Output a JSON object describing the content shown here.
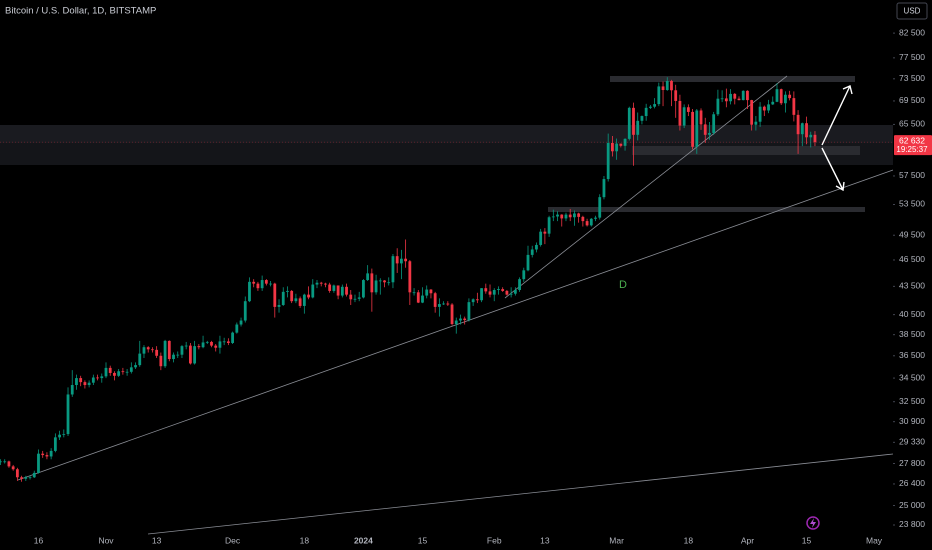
{
  "chart_data": {
    "type": "candlestick",
    "title": "Bitcoin / U.S. Dollar, 1D, BITSTAMP",
    "currency": "USD",
    "annotation": "D",
    "price_label": {
      "value": 62632,
      "label": "62 632"
    },
    "countdown": "19:25:37",
    "log_scale": true,
    "grid": false,
    "up_color": "#089981",
    "down_color": "#f23645",
    "ylim": [
      23030,
      89700
    ],
    "yticks": [
      {
        "value": 82500,
        "label": "82 500"
      },
      {
        "value": 77500,
        "label": "77 500"
      },
      {
        "value": 73500,
        "label": "73 500"
      },
      {
        "value": 69500,
        "label": "69 500"
      },
      {
        "value": 65500,
        "label": "65 500"
      },
      {
        "value": 57500,
        "label": "57 500"
      },
      {
        "value": 53500,
        "label": "53 500"
      },
      {
        "value": 49500,
        "label": "49 500"
      },
      {
        "value": 46500,
        "label": "46 500"
      },
      {
        "value": 43500,
        "label": "43 500"
      },
      {
        "value": 40500,
        "label": "40 500"
      },
      {
        "value": 38500,
        "label": "38 500"
      },
      {
        "value": 36500,
        "label": "36 500"
      },
      {
        "value": 34500,
        "label": "34 500"
      },
      {
        "value": 32500,
        "label": "32 500"
      },
      {
        "value": 30900,
        "label": "30 900"
      },
      {
        "value": 29330,
        "label": "29 330"
      },
      {
        "value": 27800,
        "label": "27 800"
      },
      {
        "value": 26400,
        "label": "26 400"
      },
      {
        "value": 25000,
        "label": "25 000"
      },
      {
        "value": 23800,
        "label": "23 800"
      }
    ],
    "categories": [
      null,
      null,
      null,
      null,
      null,
      null,
      null,
      null,
      null,
      "16",
      null,
      null,
      null,
      null,
      null,
      null,
      null,
      null,
      null,
      null,
      null,
      null,
      null,
      null,
      null,
      "Nov",
      null,
      null,
      null,
      null,
      null,
      null,
      null,
      null,
      null,
      null,
      null,
      "13",
      null,
      null,
      null,
      null,
      null,
      null,
      null,
      null,
      null,
      null,
      null,
      null,
      null,
      null,
      null,
      null,
      null,
      "Dec",
      null,
      null,
      null,
      null,
      null,
      null,
      null,
      null,
      null,
      null,
      null,
      null,
      null,
      null,
      null,
      null,
      "18",
      null,
      null,
      null,
      null,
      null,
      null,
      null,
      null,
      null,
      null,
      null,
      null,
      null,
      "2024",
      null,
      null,
      null,
      null,
      null,
      null,
      null,
      null,
      null,
      null,
      null,
      null,
      null,
      "15",
      null,
      null,
      null,
      null,
      null,
      null,
      null,
      null,
      null,
      null,
      null,
      null,
      null,
      null,
      null,
      null,
      "Feb",
      null,
      null,
      null,
      null,
      null,
      null,
      null,
      null,
      null,
      null,
      null,
      "13",
      null,
      null,
      null,
      null,
      null,
      null,
      null,
      null,
      null,
      null,
      null,
      null,
      null,
      null,
      null,
      null,
      "Mar",
      null,
      null,
      null,
      null,
      null,
      null,
      null,
      null,
      null,
      null,
      null,
      null,
      null,
      null,
      null,
      null,
      "18",
      null,
      null,
      null,
      null,
      null,
      null,
      null,
      null,
      null,
      null,
      null,
      null,
      null,
      "Apr",
      null,
      null,
      null,
      null,
      null,
      null,
      null,
      null,
      null,
      null,
      null,
      null,
      null,
      "15",
      null,
      null,
      null,
      null,
      null,
      null,
      null,
      null,
      null,
      null,
      null,
      null,
      null,
      null,
      null,
      "May"
    ],
    "open": [
      27900,
      27950,
      27950,
      27600,
      27400,
      26850,
      26750,
      26850,
      26850,
      27150,
      28500,
      28400,
      28300,
      28700,
      29700,
      29900,
      29950,
      33100,
      33900,
      34500,
      34150,
      33900,
      34100,
      34550,
      34500,
      34650,
      35400,
      34950,
      34700,
      35100,
      35050,
      35050,
      35450,
      35650,
      36700,
      37300,
      37100,
      37050,
      36500,
      35550,
      37900,
      36200,
      36600,
      36600,
      37400,
      37450,
      35800,
      37400,
      37300,
      37750,
      37800,
      37450,
      37250,
      37850,
      37850,
      37700,
      38700,
      39500,
      39900,
      41900,
      44000,
      43800,
      43300,
      44200,
      43800,
      43800,
      41300,
      41500,
      42900,
      43000,
      41900,
      42200,
      41400,
      42600,
      42300,
      43700,
      43900,
      43800,
      43700,
      43000,
      43600,
      42500,
      43450,
      42600,
      42100,
      42150,
      42300,
      44200,
      44950,
      42850,
      44150,
      44150,
      43950,
      43950,
      46950,
      46100,
      46650,
      46350,
      42850,
      42850,
      41750,
      42500,
      43150,
      42750,
      41300,
      41600,
      41650,
      41550,
      39550,
      39900,
      40100,
      39950,
      41800,
      42100,
      42000,
      43300,
      42950,
      42600,
      43100,
      43200,
      43000,
      42600,
      42700,
      43100,
      44300,
      45300,
      47100,
      47750,
      48300,
      49950,
      49700,
      51800,
      51900,
      52150,
      51650,
      52150,
      51800,
      52300,
      51850,
      51300,
      50750,
      51600,
      51750,
      54500,
      57050,
      62500,
      61200,
      62400,
      62050,
      63150,
      68300,
      63800,
      66100,
      66900,
      68300,
      68500,
      68950,
      72100,
      71450,
      73100,
      71400,
      69500,
      65300,
      68400,
      67600,
      61900,
      67850,
      65500,
      63800,
      64100,
      67200,
      69900,
      69950,
      69450,
      70750,
      69900,
      69650,
      71300,
      69650,
      65450,
      65950,
      68500,
      67850,
      68900,
      69350,
      71600,
      69100,
      70600,
      70000,
      67100,
      63900,
      65700,
      63400,
      63800,
      null,
      null,
      null,
      null,
      null,
      null,
      null,
      null,
      null,
      null,
      null,
      null,
      null,
      null
    ],
    "high": [
      28100,
      28100,
      28000,
      27700,
      27500,
      26950,
      26950,
      26950,
      27300,
      28800,
      28700,
      28600,
      28900,
      30000,
      30200,
      30300,
      33700,
      35200,
      34800,
      34700,
      34300,
      34300,
      34800,
      34800,
      34900,
      35900,
      35600,
      35100,
      35300,
      35400,
      35300,
      35900,
      35900,
      37900,
      37500,
      37400,
      37300,
      37400,
      36800,
      38000,
      37950,
      36800,
      36900,
      37500,
      37800,
      37700,
      37900,
      37600,
      38400,
      37900,
      37900,
      37600,
      38400,
      38200,
      38150,
      38800,
      39700,
      40200,
      42400,
      44500,
      44300,
      44000,
      44700,
      44300,
      44100,
      43900,
      42100,
      43400,
      43500,
      43100,
      42700,
      42400,
      42700,
      43500,
      44300,
      44200,
      44000,
      43900,
      43900,
      43700,
      43600,
      43700,
      43800,
      43100,
      42600,
      42900,
      44300,
      45900,
      45500,
      44800,
      44400,
      44200,
      44500,
      47200,
      47900,
      47700,
      48970,
      46500,
      43300,
      43100,
      43400,
      43600,
      43200,
      42900,
      42200,
      41900,
      41900,
      41700,
      40200,
      40500,
      40300,
      42200,
      42200,
      42800,
      43300,
      43800,
      43700,
      43300,
      43500,
      43400,
      43100,
      43400,
      43400,
      44500,
      45600,
      48200,
      48200,
      48600,
      50300,
      50400,
      52000,
      52800,
      52600,
      52200,
      52400,
      52900,
      52700,
      52400,
      52000,
      51600,
      51700,
      52000,
      54900,
      57500,
      64000,
      63600,
      63200,
      62400,
      63250,
      68500,
      69200,
      67500,
      67000,
      69000,
      68800,
      70000,
      72800,
      73000,
      73800,
      73300,
      72400,
      70600,
      68900,
      68900,
      68100,
      68100,
      68200,
      66600,
      65900,
      67600,
      71500,
      71400,
      71700,
      71600,
      70900,
      70300,
      71400,
      71400,
      69700,
      66900,
      69300,
      68700,
      69700,
      70300,
      72700,
      71700,
      71200,
      71300,
      71200,
      67900,
      65800,
      66800,
      64300,
      64400,
      null,
      null,
      null,
      null,
      null,
      null,
      null,
      null,
      null,
      null,
      null,
      null,
      null,
      null
    ],
    "low": [
      27700,
      27800,
      27500,
      27300,
      26600,
      26550,
      26600,
      26700,
      26800,
      27100,
      28200,
      28100,
      28100,
      28600,
      29500,
      29700,
      29800,
      32900,
      33500,
      33800,
      33600,
      33700,
      33900,
      34300,
      34100,
      34500,
      34700,
      34300,
      34600,
      34800,
      34700,
      34900,
      35300,
      35500,
      36300,
      36800,
      36800,
      36300,
      35200,
      35400,
      36000,
      35900,
      36300,
      36300,
      37100,
      35700,
      35700,
      37100,
      37200,
      37600,
      37300,
      36900,
      36700,
      37500,
      37500,
      37600,
      38600,
      39300,
      39700,
      41800,
      43400,
      43000,
      43000,
      43600,
      43500,
      40200,
      40700,
      41400,
      42300,
      41700,
      41700,
      41200,
      40600,
      42100,
      42200,
      43300,
      43500,
      43400,
      42800,
      42800,
      42100,
      42300,
      42400,
      41500,
      41800,
      41900,
      42200,
      44100,
      40800,
      42600,
      42600,
      43400,
      43600,
      43300,
      45000,
      44300,
      45600,
      41500,
      42500,
      41700,
      41700,
      42200,
      42200,
      40700,
      40300,
      41500,
      41400,
      39400,
      38600,
      39500,
      39500,
      39800,
      41400,
      41700,
      41800,
      42700,
      42300,
      41900,
      42600,
      42900,
      42500,
      42300,
      42500,
      42900,
      44000,
      45200,
      46800,
      47400,
      48100,
      48400,
      49300,
      51300,
      51300,
      50600,
      51300,
      51300,
      50700,
      51100,
      50600,
      50600,
      50600,
      51300,
      51500,
      54200,
      56700,
      60400,
      59900,
      61800,
      61300,
      62900,
      59000,
      62900,
      65500,
      66100,
      68100,
      68200,
      68600,
      68600,
      71300,
      68600,
      66600,
      64500,
      64900,
      66900,
      61500,
      60800,
      64600,
      62500,
      63000,
      63800,
      66900,
      69300,
      68400,
      68900,
      68900,
      69600,
      69600,
      68100,
      64500,
      64500,
      65100,
      66900,
      67400,
      68800,
      69300,
      68800,
      67500,
      69600,
      66000,
      60800,
      62000,
      62300,
      61800,
      62000,
      null,
      null,
      null,
      null,
      null,
      null,
      null,
      null,
      null,
      null,
      null,
      null,
      null,
      null
    ],
    "close": [
      27950,
      27950,
      27600,
      27400,
      26850,
      26750,
      26850,
      26850,
      27150,
      28500,
      28400,
      28300,
      28700,
      29700,
      29900,
      29950,
      33100,
      33900,
      34500,
      34150,
      33900,
      34100,
      34550,
      34500,
      34650,
      35400,
      34950,
      34700,
      35100,
      35050,
      35050,
      35450,
      35650,
      36700,
      37300,
      37100,
      37050,
      36500,
      35550,
      37900,
      36200,
      36600,
      36600,
      37400,
      37450,
      35800,
      37400,
      37300,
      37750,
      37800,
      37450,
      37250,
      37850,
      37850,
      37700,
      38700,
      39500,
      39900,
      41900,
      44000,
      43800,
      43300,
      44200,
      43800,
      43800,
      41300,
      41500,
      42900,
      43000,
      41900,
      42200,
      41400,
      42600,
      42300,
      43700,
      43900,
      43800,
      43700,
      43000,
      43600,
      42500,
      43450,
      42600,
      42100,
      42150,
      42300,
      44200,
      44950,
      42850,
      44150,
      44150,
      43950,
      43950,
      46950,
      46100,
      46650,
      46350,
      42850,
      42850,
      41750,
      42500,
      43150,
      42750,
      41300,
      41600,
      41650,
      41550,
      39550,
      39900,
      40100,
      39950,
      41800,
      42100,
      42000,
      43300,
      42950,
      42600,
      43100,
      43200,
      43000,
      42600,
      42700,
      43100,
      44300,
      45300,
      47100,
      47750,
      48300,
      49950,
      49700,
      51800,
      51900,
      52150,
      51650,
      52150,
      51800,
      52300,
      51850,
      51300,
      50750,
      51600,
      51750,
      54500,
      57050,
      62500,
      61200,
      62400,
      62050,
      63150,
      68300,
      63800,
      66100,
      66900,
      68300,
      68500,
      68950,
      72100,
      71450,
      73100,
      71400,
      69500,
      65300,
      68400,
      67600,
      61900,
      67850,
      65500,
      63800,
      64100,
      67200,
      69900,
      69950,
      69450,
      70750,
      69900,
      69650,
      71300,
      69650,
      65450,
      65950,
      68500,
      67850,
      68900,
      69350,
      71600,
      69100,
      70600,
      70000,
      67100,
      63900,
      65700,
      63400,
      63800,
      62632,
      null,
      null,
      null,
      null,
      null,
      null,
      null,
      null,
      null,
      null,
      null,
      null,
      null,
      null
    ]
  }
}
